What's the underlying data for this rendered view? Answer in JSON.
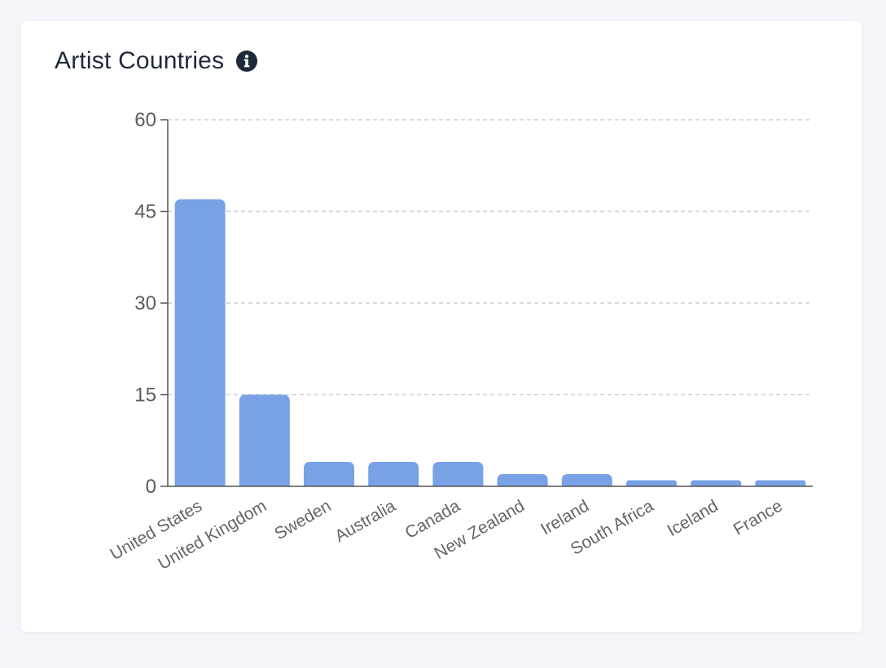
{
  "card": {
    "title": "Artist Countries",
    "info_icon": "info-icon"
  },
  "colors": {
    "bar": "#78a1e6",
    "grid": "#cfcfcf",
    "axis": "#555555",
    "title": "#1e2a3b"
  },
  "chart_data": {
    "type": "bar",
    "title": "Artist Countries",
    "xlabel": "",
    "ylabel": "",
    "categories": [
      "United States",
      "United Kingdom",
      "Sweden",
      "Australia",
      "Canada",
      "New Zealand",
      "Ireland",
      "South Africa",
      "Iceland",
      "France"
    ],
    "values": [
      47,
      15,
      4,
      4,
      4,
      2,
      2,
      1,
      1,
      1
    ],
    "ylim": [
      0,
      60
    ],
    "yticks": [
      0,
      15,
      30,
      45,
      60
    ],
    "ytick_labels": [
      "0",
      "15",
      "30",
      "45",
      "60"
    ],
    "grid": true,
    "legend": "none"
  }
}
